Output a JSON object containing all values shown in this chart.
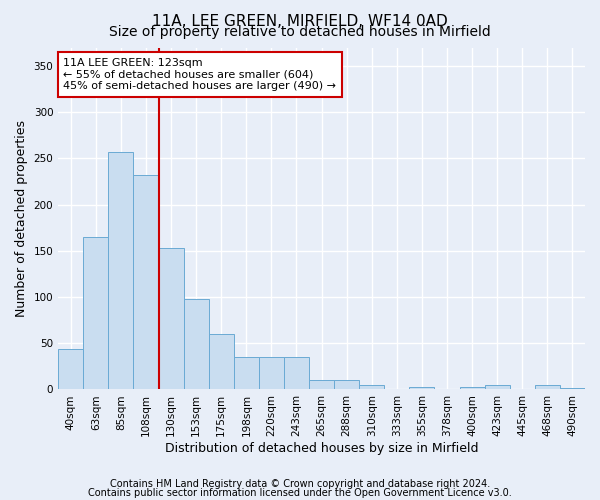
{
  "title1": "11A, LEE GREEN, MIRFIELD, WF14 0AD",
  "title2": "Size of property relative to detached houses in Mirfield",
  "xlabel": "Distribution of detached houses by size in Mirfield",
  "ylabel": "Number of detached properties",
  "categories": [
    "40sqm",
    "63sqm",
    "85sqm",
    "108sqm",
    "130sqm",
    "153sqm",
    "175sqm",
    "198sqm",
    "220sqm",
    "243sqm",
    "265sqm",
    "288sqm",
    "310sqm",
    "333sqm",
    "355sqm",
    "378sqm",
    "400sqm",
    "423sqm",
    "445sqm",
    "468sqm",
    "490sqm"
  ],
  "values": [
    44,
    165,
    257,
    232,
    153,
    98,
    60,
    35,
    35,
    35,
    10,
    10,
    5,
    0,
    3,
    0,
    3,
    5,
    0,
    5,
    2
  ],
  "bar_color": "#c9ddf0",
  "bar_edge_color": "#6aaad4",
  "vline_x": 3.5,
  "vline_color": "#cc0000",
  "ylim": [
    0,
    370
  ],
  "yticks": [
    0,
    50,
    100,
    150,
    200,
    250,
    300,
    350
  ],
  "annotation_text": "11A LEE GREEN: 123sqm\n← 55% of detached houses are smaller (604)\n45% of semi-detached houses are larger (490) →",
  "annotation_box_color": "#ffffff",
  "annotation_box_edge": "#cc0000",
  "footer1": "Contains HM Land Registry data © Crown copyright and database right 2024.",
  "footer2": "Contains public sector information licensed under the Open Government Licence v3.0.",
  "bg_color": "#e8eef8",
  "plot_bg_color": "#e8eef8",
  "grid_color": "#ffffff",
  "title1_fontsize": 11,
  "title2_fontsize": 10,
  "tick_fontsize": 7.5,
  "label_fontsize": 9,
  "footer_fontsize": 7,
  "annotation_fontsize": 8
}
